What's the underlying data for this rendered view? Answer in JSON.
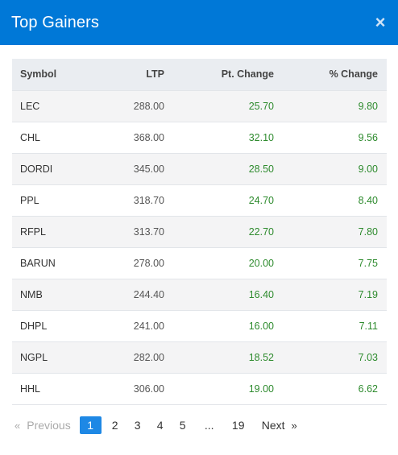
{
  "header": {
    "title": "Top Gainers",
    "close_label": "×"
  },
  "table": {
    "columns": [
      "Symbol",
      "LTP",
      "Pt. Change",
      "% Change"
    ],
    "rows": [
      [
        "LEC",
        "288.00",
        "25.70",
        "9.80"
      ],
      [
        "CHL",
        "368.00",
        "32.10",
        "9.56"
      ],
      [
        "DORDI",
        "345.00",
        "28.50",
        "9.00"
      ],
      [
        "PPL",
        "318.70",
        "24.70",
        "8.40"
      ],
      [
        "RFPL",
        "313.70",
        "22.70",
        "7.80"
      ],
      [
        "BARUN",
        "278.00",
        "20.00",
        "7.75"
      ],
      [
        "NMB",
        "244.40",
        "16.40",
        "7.19"
      ],
      [
        "DHPL",
        "241.00",
        "16.00",
        "7.11"
      ],
      [
        "NGPL",
        "282.00",
        "18.52",
        "7.03"
      ],
      [
        "HHL",
        "306.00",
        "19.00",
        "6.62"
      ]
    ]
  },
  "pagination": {
    "prev_arrow": "«",
    "prev_label": "Previous",
    "pages": [
      "1",
      "2",
      "3",
      "4",
      "5"
    ],
    "ellipsis": "...",
    "last_page": "19",
    "next_label": "Next",
    "next_arrow": "»",
    "active_page": "1"
  },
  "colors": {
    "header_bg": "#0078d7",
    "gain": "#2e8b2e",
    "active_page": "#1e88e5"
  }
}
